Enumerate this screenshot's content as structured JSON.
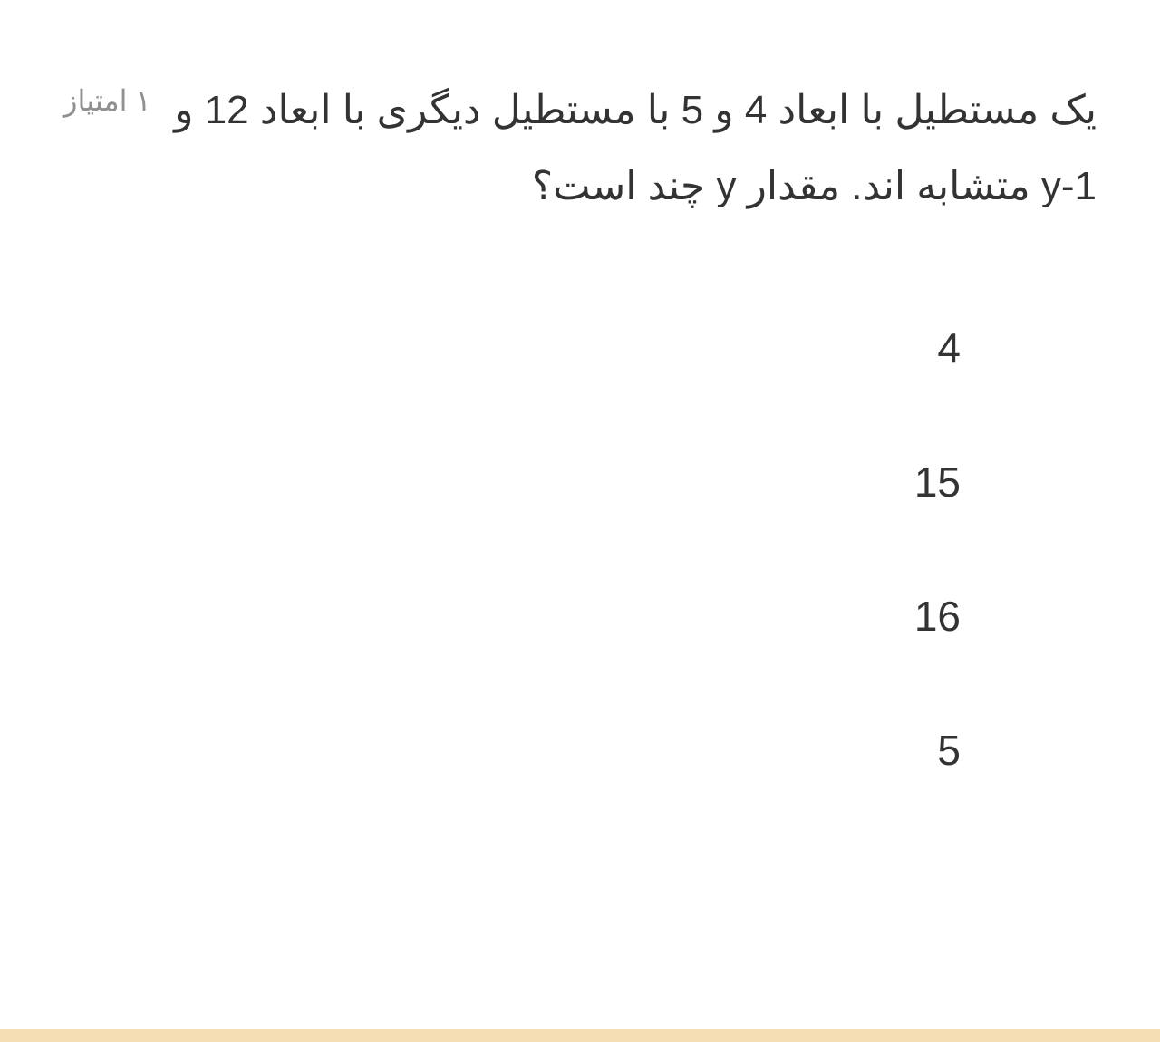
{
  "question": {
    "text": "یک مستطیل با ابعاد 4 و 5 با مستطیل دیگری با ابعاد 12 و y-1 متشابه اند. مقدار y چند است؟",
    "points_label": "۱ امتیاز"
  },
  "options": [
    "4",
    "15",
    "16",
    "5"
  ],
  "styling": {
    "background_color": "#ffffff",
    "question_text_color": "#333333",
    "question_font_size": 44,
    "points_color": "#909090",
    "points_font_size": 32,
    "option_text_color": "#333333",
    "option_font_size": 46,
    "option_spacing": 94,
    "bottom_bar_color": "#f5deb3",
    "bottom_bar_height": 14,
    "direction": "rtl"
  }
}
